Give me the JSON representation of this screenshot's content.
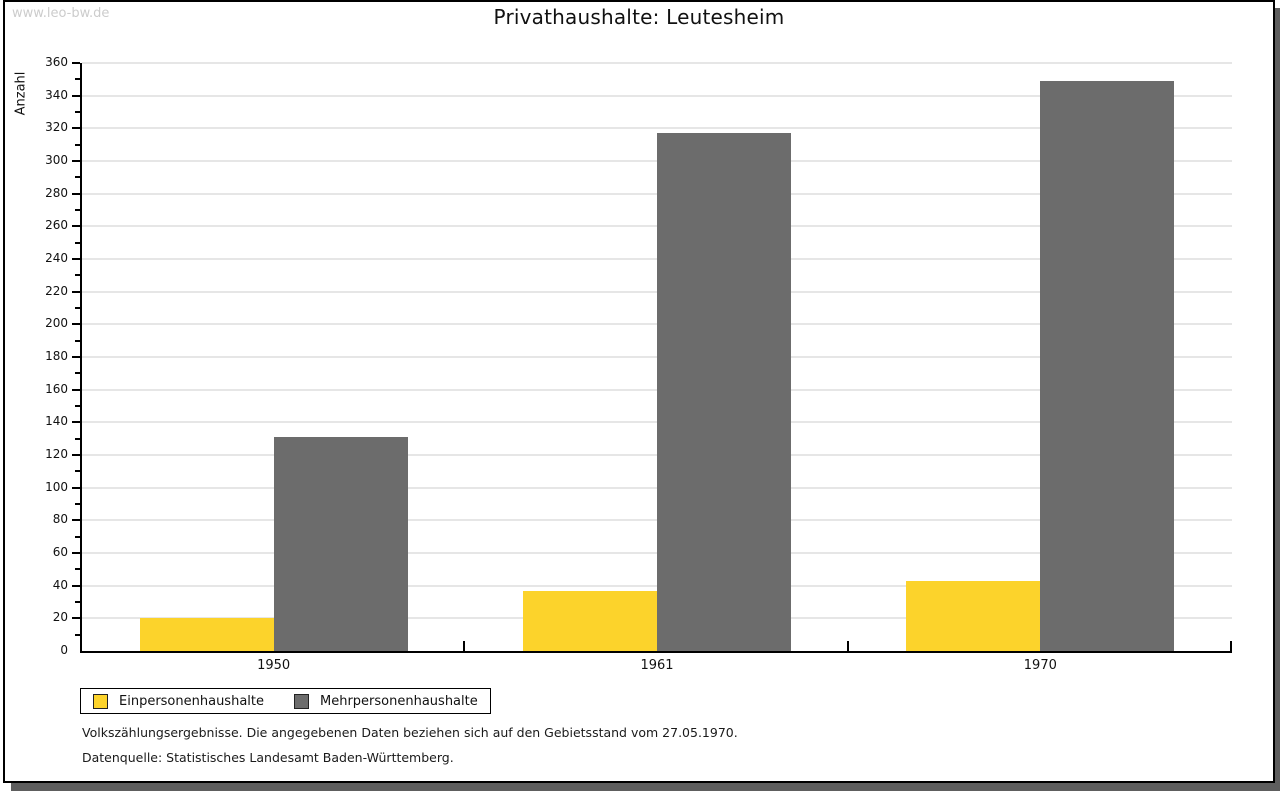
{
  "watermark": "www.leo-bw.de",
  "title": "Privathaushalte: Leutesheim",
  "chart_data": {
    "type": "bar",
    "categories": [
      "1950",
      "1961",
      "1970"
    ],
    "series": [
      {
        "name": "Einpersonenhaushalte",
        "color": "#FCD32B",
        "values": [
          20,
          37,
          43
        ]
      },
      {
        "name": "Mehrpersonenhaushalte",
        "color": "#6C6C6C",
        "values": [
          131,
          317,
          349
        ]
      }
    ],
    "title": "Privathaushalte: Leutesheim",
    "xlabel": "",
    "ylabel": "Anzahl",
    "ylim": [
      0,
      360
    ],
    "ytick_step": 20,
    "yminortick_step": 10,
    "grid": true,
    "gridline_color": "#e6e6e6",
    "legend_position": "bottom-left"
  },
  "footnotes": [
    "Volkszählungsergebnisse. Die angegebenen Daten beziehen sich auf den Gebietsstand vom 27.05.1970.",
    "Datenquelle: Statistisches Landesamt Baden-Württemberg."
  ]
}
